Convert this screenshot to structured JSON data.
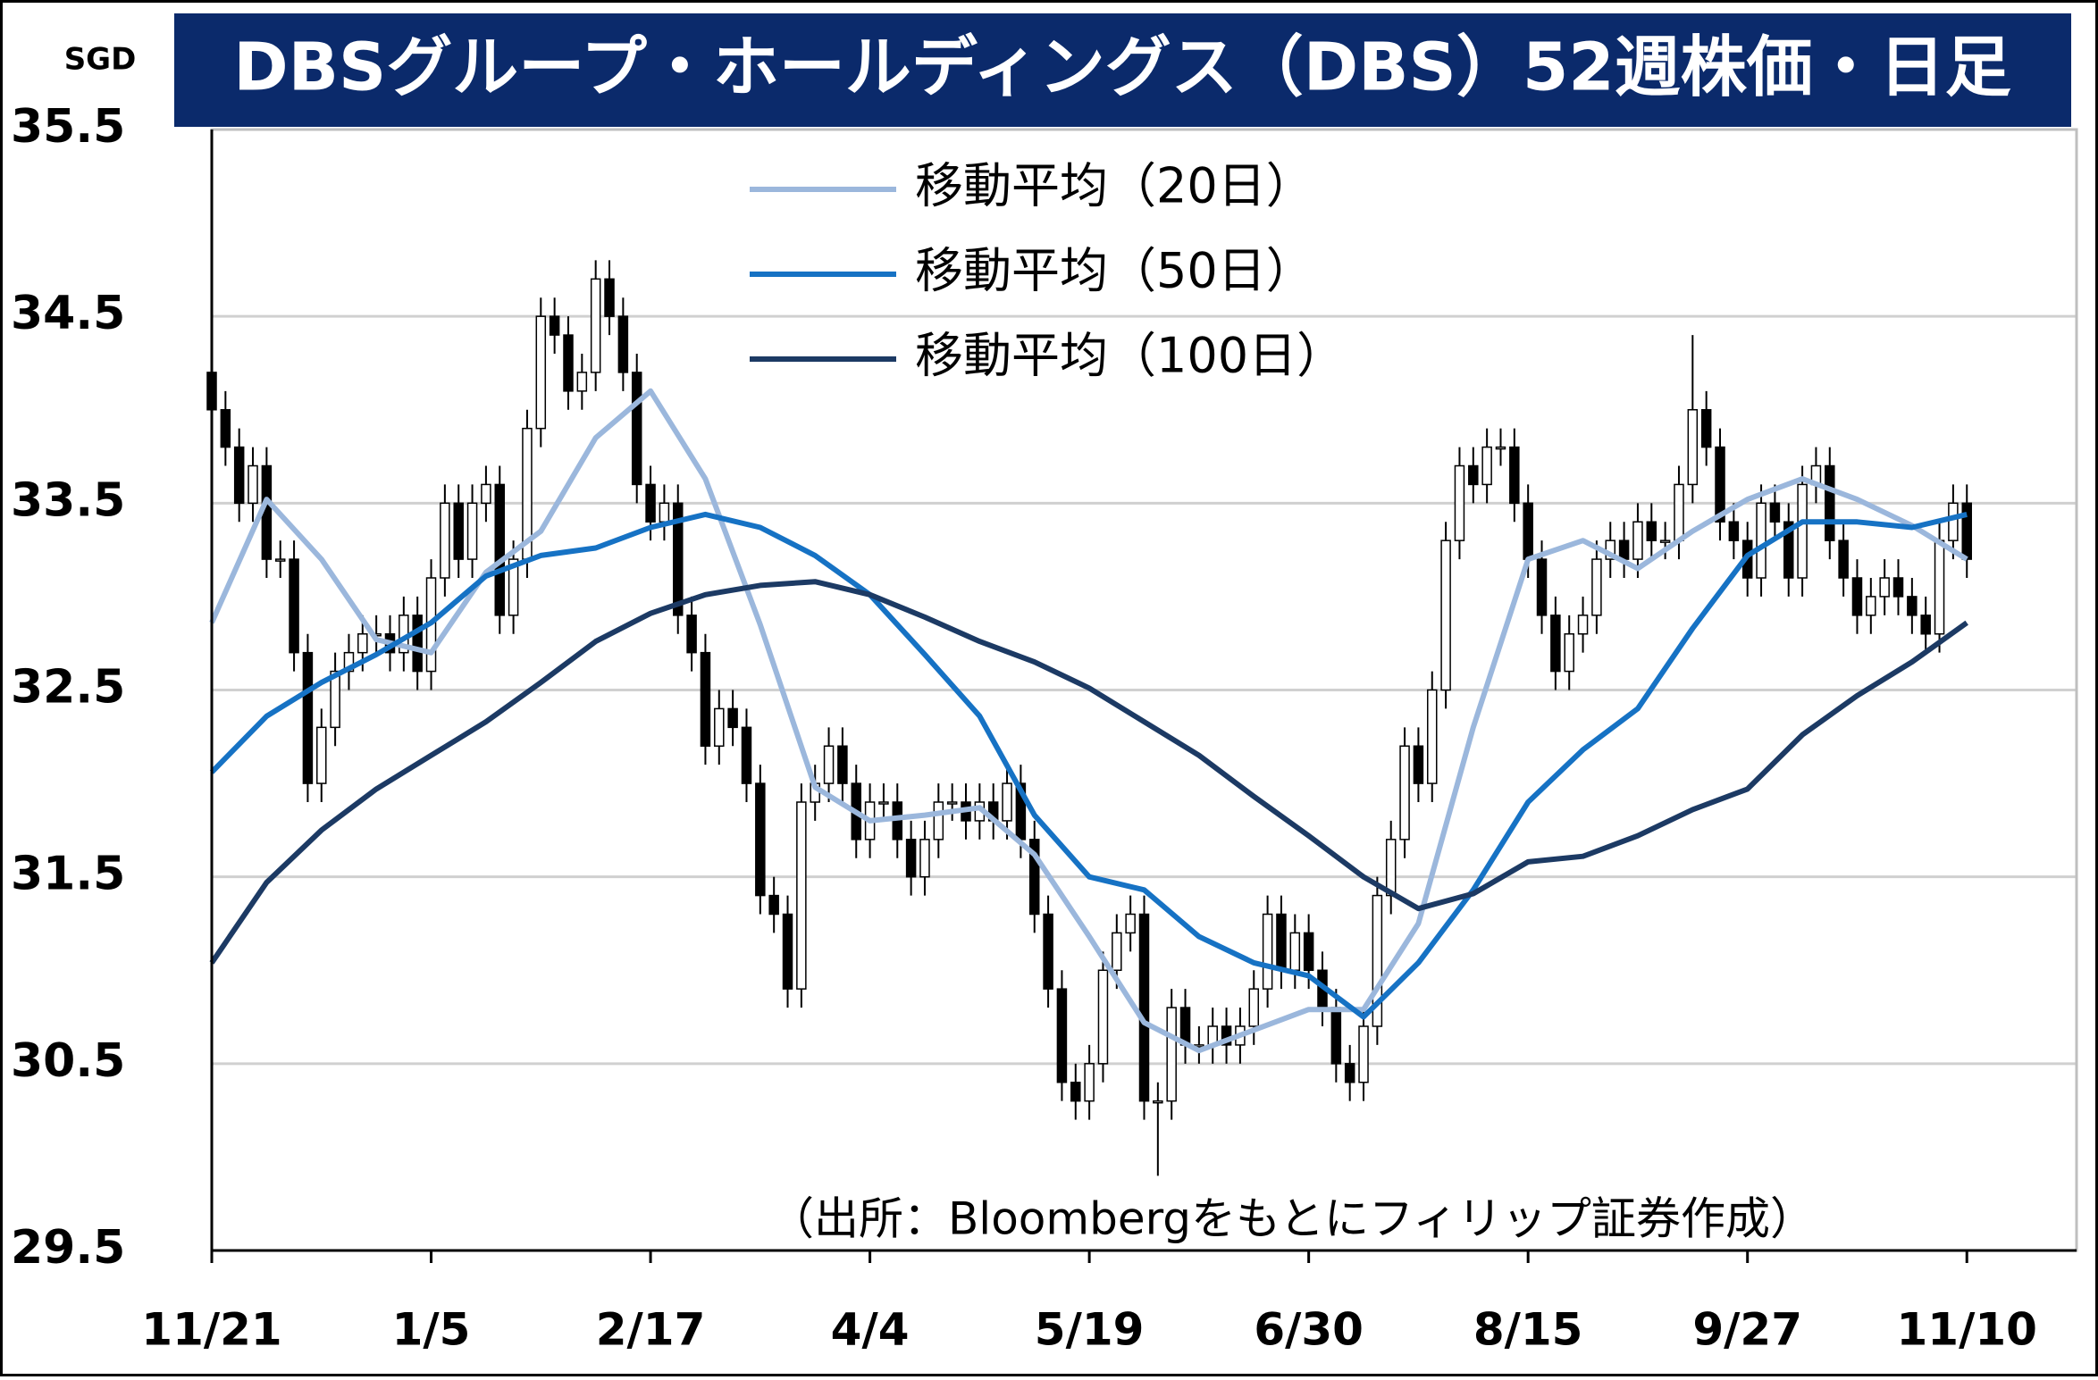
{
  "chart_data": {
    "type": "candlestick",
    "title": "DBSグループ・ホールディングス（DBS）52週株価・日足",
    "y_unit": "SGD",
    "source_note": "（出所：Bloombergをもとにフィリップ証券作成）",
    "xlim": [
      0,
      136
    ],
    "xticks": [
      {
        "value": 0,
        "label": "11/21"
      },
      {
        "value": 16,
        "label": "1/5"
      },
      {
        "value": 32,
        "label": "2/17"
      },
      {
        "value": 48,
        "label": "4/4"
      },
      {
        "value": 64,
        "label": "5/19"
      },
      {
        "value": 80,
        "label": "6/30"
      },
      {
        "value": 96,
        "label": "8/15"
      },
      {
        "value": 112,
        "label": "9/27"
      },
      {
        "value": 128,
        "label": "11/10"
      }
    ],
    "ylim": [
      29.5,
      35.5
    ],
    "yticks": [
      29.5,
      30.5,
      31.5,
      32.5,
      33.5,
      34.5,
      35.5
    ],
    "grid": true,
    "up_color": "#ffffff",
    "down_color": "#000000",
    "x": [
      0,
      1,
      2,
      3,
      4,
      5,
      6,
      7,
      8,
      9,
      10,
      11,
      12,
      13,
      14,
      15,
      16,
      17,
      18,
      19,
      20,
      21,
      22,
      23,
      24,
      25,
      26,
      27,
      28,
      29,
      30,
      31,
      32,
      33,
      34,
      35,
      36,
      37,
      38,
      39,
      40,
      41,
      42,
      43,
      44,
      45,
      46,
      47,
      48,
      49,
      50,
      51,
      52,
      53,
      54,
      55,
      56,
      57,
      58,
      59,
      60,
      61,
      62,
      63,
      64,
      65,
      66,
      67,
      68,
      69,
      70,
      71,
      72,
      73,
      74,
      75,
      76,
      77,
      78,
      79,
      80,
      81,
      82,
      83,
      84,
      85,
      86,
      87,
      88,
      89,
      90,
      91,
      92,
      93,
      94,
      95,
      96,
      97,
      98,
      99,
      100,
      101,
      102,
      103,
      104,
      105,
      106,
      107,
      108,
      109,
      110,
      111,
      112,
      113,
      114,
      115,
      116,
      117,
      118,
      119,
      120,
      121,
      122,
      123,
      124,
      125,
      126,
      127,
      128
    ],
    "open": [
      34.2,
      34.0,
      33.8,
      33.5,
      33.7,
      33.2,
      33.2,
      32.7,
      32.0,
      32.3,
      32.6,
      32.7,
      32.8,
      32.8,
      32.7,
      32.9,
      32.6,
      33.1,
      33.5,
      33.2,
      33.5,
      33.6,
      32.9,
      33.2,
      33.9,
      34.5,
      34.4,
      34.1,
      34.2,
      34.7,
      34.5,
      34.2,
      33.6,
      33.4,
      33.5,
      32.9,
      32.7,
      32.2,
      32.4,
      32.3,
      32.0,
      31.4,
      31.3,
      30.9,
      31.9,
      32.0,
      32.2,
      32.0,
      31.7,
      31.9,
      31.9,
      31.7,
      31.5,
      31.7,
      31.9,
      31.9,
      31.8,
      31.9,
      31.8,
      32.0,
      31.7,
      31.3,
      30.9,
      30.4,
      30.3,
      30.5,
      31.0,
      31.2,
      31.3,
      30.3,
      30.3,
      30.8,
      30.6,
      30.6,
      30.7,
      30.6,
      30.7,
      30.9,
      31.3,
      31.0,
      31.2,
      31.0,
      30.8,
      30.5,
      30.4,
      30.7,
      31.4,
      31.7,
      32.2,
      32.0,
      32.5,
      33.3,
      33.7,
      33.6,
      33.8,
      33.8,
      33.5,
      33.2,
      32.9,
      32.6,
      32.8,
      32.9,
      33.2,
      33.3,
      33.2,
      33.4,
      33.3,
      33.3,
      33.6,
      34.0,
      33.8,
      33.4,
      33.3,
      33.1,
      33.5,
      33.4,
      33.1,
      33.6,
      33.7,
      33.3,
      33.1,
      32.9,
      33.0,
      33.1,
      33.0,
      32.9,
      32.8,
      33.3,
      33.5
    ],
    "high": [
      34.3,
      34.1,
      33.9,
      33.8,
      33.8,
      33.3,
      33.3,
      32.8,
      32.4,
      32.7,
      32.8,
      32.9,
      32.9,
      32.9,
      33.0,
      33.0,
      33.2,
      33.6,
      33.6,
      33.6,
      33.7,
      33.7,
      33.3,
      34.0,
      34.6,
      34.6,
      34.5,
      34.3,
      34.8,
      34.8,
      34.6,
      34.3,
      33.7,
      33.6,
      33.6,
      33.0,
      32.8,
      32.5,
      32.5,
      32.4,
      32.1,
      31.5,
      31.4,
      32.0,
      32.1,
      32.3,
      32.3,
      32.1,
      32.0,
      32.0,
      32.0,
      31.8,
      31.8,
      32.0,
      32.0,
      32.0,
      32.0,
      32.0,
      32.1,
      32.1,
      31.8,
      31.4,
      31.0,
      30.5,
      30.6,
      31.1,
      31.3,
      31.4,
      31.4,
      30.4,
      30.9,
      30.9,
      30.7,
      30.8,
      30.8,
      30.8,
      31.0,
      31.4,
      31.4,
      31.3,
      31.3,
      31.1,
      30.9,
      30.6,
      30.8,
      31.5,
      31.8,
      32.3,
      32.3,
      32.6,
      33.4,
      33.8,
      33.8,
      33.9,
      33.9,
      33.9,
      33.6,
      33.3,
      33.0,
      32.9,
      33.0,
      33.3,
      33.4,
      33.4,
      33.5,
      33.5,
      33.4,
      33.7,
      34.4,
      34.1,
      33.9,
      33.5,
      33.4,
      33.6,
      33.6,
      33.5,
      33.7,
      33.8,
      33.8,
      33.4,
      33.2,
      33.1,
      33.2,
      33.2,
      33.1,
      33.0,
      33.4,
      33.6,
      33.6
    ],
    "low": [
      33.9,
      33.7,
      33.4,
      33.4,
      33.1,
      33.1,
      32.6,
      31.9,
      31.9,
      32.2,
      32.5,
      32.6,
      32.7,
      32.6,
      32.6,
      32.5,
      32.5,
      33.0,
      33.1,
      33.1,
      33.4,
      32.8,
      32.8,
      33.1,
      33.8,
      34.3,
      34.0,
      34.0,
      34.1,
      34.4,
      34.1,
      33.5,
      33.3,
      33.3,
      32.8,
      32.6,
      32.1,
      32.1,
      32.2,
      31.9,
      31.3,
      31.2,
      30.8,
      30.8,
      31.8,
      31.9,
      31.9,
      31.6,
      31.6,
      31.8,
      31.6,
      31.4,
      31.4,
      31.6,
      31.8,
      31.7,
      31.7,
      31.7,
      31.7,
      31.6,
      31.2,
      30.8,
      30.3,
      30.2,
      30.2,
      30.4,
      30.9,
      31.1,
      30.2,
      29.9,
      30.2,
      30.5,
      30.5,
      30.5,
      30.5,
      30.5,
      30.6,
      30.8,
      30.9,
      30.9,
      30.9,
      30.7,
      30.4,
      30.3,
      30.3,
      30.6,
      31.3,
      31.6,
      31.9,
      31.9,
      32.4,
      33.2,
      33.5,
      33.5,
      33.7,
      33.4,
      33.1,
      32.8,
      32.5,
      32.5,
      32.7,
      32.8,
      33.1,
      33.1,
      33.1,
      33.2,
      33.2,
      33.2,
      33.5,
      33.7,
      33.3,
      33.2,
      33.0,
      33.0,
      33.3,
      33.0,
      33.0,
      33.5,
      33.2,
      33.0,
      32.8,
      32.8,
      32.9,
      32.9,
      32.8,
      32.7,
      32.7,
      33.2,
      33.1
    ],
    "close": [
      34.0,
      33.8,
      33.5,
      33.7,
      33.2,
      33.2,
      32.7,
      32.0,
      32.3,
      32.6,
      32.7,
      32.8,
      32.8,
      32.7,
      32.9,
      32.6,
      33.1,
      33.5,
      33.2,
      33.5,
      33.6,
      32.9,
      33.2,
      33.9,
      34.5,
      34.4,
      34.1,
      34.2,
      34.7,
      34.5,
      34.2,
      33.6,
      33.4,
      33.5,
      32.9,
      32.7,
      32.2,
      32.4,
      32.3,
      32.0,
      31.4,
      31.3,
      30.9,
      31.9,
      32.0,
      32.2,
      32.0,
      31.7,
      31.9,
      31.9,
      31.7,
      31.5,
      31.7,
      31.9,
      31.9,
      31.8,
      31.9,
      31.8,
      32.0,
      31.7,
      31.3,
      30.9,
      30.4,
      30.3,
      30.5,
      31.0,
      31.2,
      31.3,
      30.3,
      30.3,
      30.8,
      30.6,
      30.6,
      30.7,
      30.6,
      30.7,
      30.9,
      31.3,
      31.0,
      31.2,
      31.0,
      30.8,
      30.5,
      30.4,
      30.7,
      31.4,
      31.7,
      32.2,
      32.0,
      32.5,
      33.3,
      33.7,
      33.6,
      33.8,
      33.8,
      33.5,
      33.2,
      32.9,
      32.6,
      32.8,
      32.9,
      33.2,
      33.3,
      33.2,
      33.4,
      33.3,
      33.3,
      33.6,
      34.0,
      33.8,
      33.4,
      33.3,
      33.1,
      33.5,
      33.4,
      33.1,
      33.6,
      33.7,
      33.3,
      33.1,
      32.9,
      33.0,
      33.1,
      33.0,
      32.9,
      32.8,
      33.3,
      33.5,
      33.2
    ],
    "series": [
      {
        "name": "移動平均（20日）",
        "color": "#9bb7dc",
        "x": [
          0,
          4,
          8,
          12,
          16,
          20,
          24,
          28,
          32,
          36,
          40,
          44,
          48,
          52,
          56,
          60,
          64,
          68,
          72,
          76,
          80,
          84,
          88,
          92,
          96,
          100,
          104,
          108,
          112,
          116,
          120,
          124,
          128
        ],
        "values": [
          32.86,
          33.52,
          33.2,
          32.77,
          32.7,
          33.13,
          33.35,
          33.85,
          34.1,
          33.63,
          32.85,
          31.98,
          31.8,
          31.83,
          31.87,
          31.62,
          31.18,
          30.72,
          30.57,
          30.68,
          30.79,
          30.79,
          31.25,
          32.3,
          33.2,
          33.3,
          33.15,
          33.35,
          33.52,
          33.63,
          33.52,
          33.38,
          33.2
        ]
      },
      {
        "name": "移動平均（50日）",
        "color": "#1672c4",
        "x": [
          0,
          4,
          8,
          12,
          16,
          20,
          24,
          28,
          32,
          36,
          40,
          44,
          48,
          52,
          56,
          60,
          64,
          68,
          72,
          76,
          80,
          84,
          88,
          92,
          96,
          100,
          104,
          108,
          112,
          116,
          120,
          124,
          128
        ],
        "values": [
          32.06,
          32.36,
          32.54,
          32.69,
          32.86,
          33.11,
          33.22,
          33.26,
          33.37,
          33.44,
          33.37,
          33.22,
          33.01,
          32.69,
          32.36,
          31.83,
          31.5,
          31.43,
          31.18,
          31.04,
          30.97,
          30.75,
          31.04,
          31.43,
          31.9,
          32.18,
          32.4,
          32.83,
          33.22,
          33.4,
          33.4,
          33.37,
          33.44
        ]
      },
      {
        "name": "移動平均（100日）",
        "color": "#1c3a64",
        "x": [
          0,
          4,
          8,
          12,
          16,
          20,
          24,
          28,
          32,
          36,
          40,
          44,
          48,
          52,
          56,
          60,
          64,
          68,
          72,
          76,
          80,
          84,
          88,
          92,
          96,
          100,
          104,
          108,
          112,
          116,
          120,
          124,
          128
        ],
        "values": [
          31.04,
          31.47,
          31.75,
          31.97,
          32.15,
          32.33,
          32.54,
          32.76,
          32.91,
          33.01,
          33.06,
          33.08,
          33.01,
          32.89,
          32.76,
          32.65,
          32.51,
          32.33,
          32.15,
          31.93,
          31.72,
          31.5,
          31.33,
          31.41,
          31.58,
          31.61,
          31.72,
          31.86,
          31.97,
          32.26,
          32.47,
          32.65,
          32.86
        ]
      }
    ]
  }
}
